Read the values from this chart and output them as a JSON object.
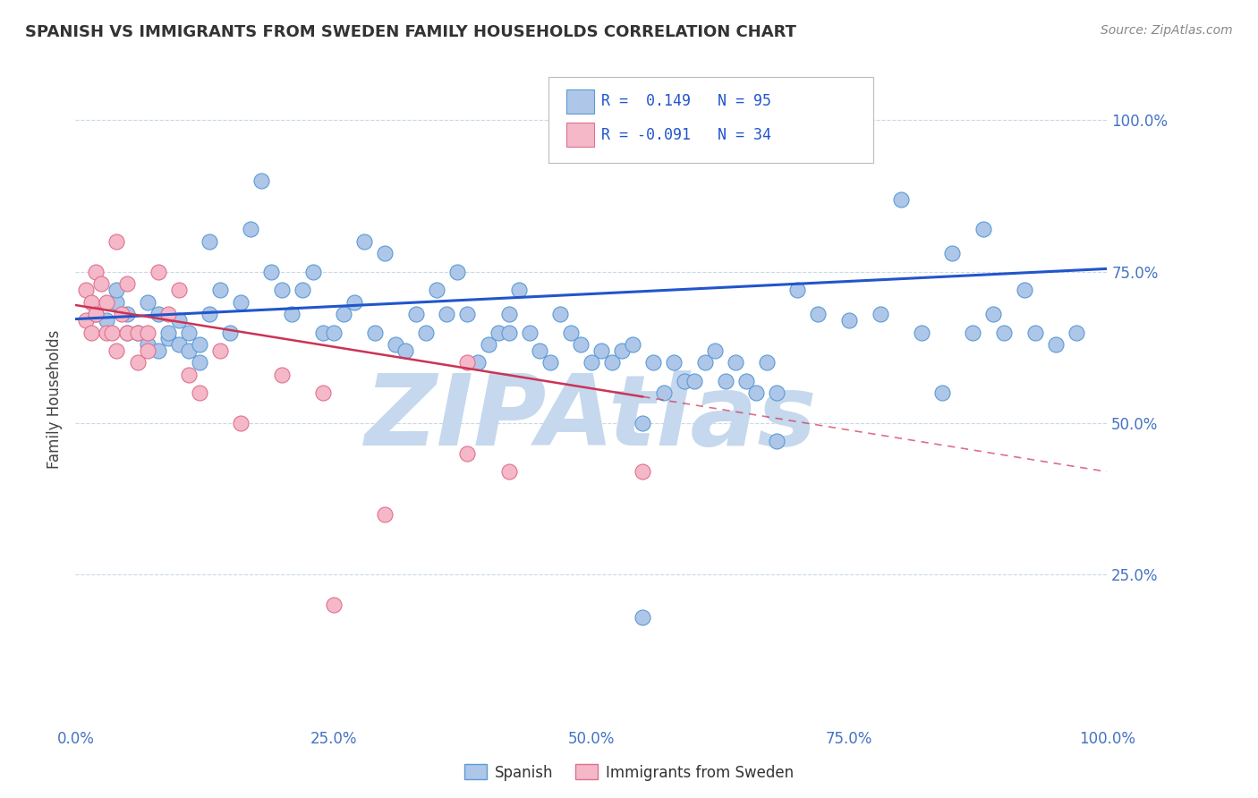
{
  "title": "SPANISH VS IMMIGRANTS FROM SWEDEN FAMILY HOUSEHOLDS CORRELATION CHART",
  "source": "Source: ZipAtlas.com",
  "ylabel": "Family Households",
  "xlim": [
    0.0,
    1.0
  ],
  "ylim": [
    0.0,
    1.08
  ],
  "ytick_labels": [
    "100.0%",
    "75.0%",
    "50.0%",
    "25.0%"
  ],
  "ytick_values": [
    1.0,
    0.75,
    0.5,
    0.25
  ],
  "xtick_labels": [
    "0.0%",
    "25.0%",
    "50.0%",
    "75.0%",
    "100.0%"
  ],
  "xtick_values": [
    0.0,
    0.25,
    0.5,
    0.75,
    1.0
  ],
  "blue_R": 0.149,
  "blue_N": 95,
  "pink_R": -0.091,
  "pink_N": 34,
  "blue_color": "#aec6e8",
  "blue_edge_color": "#5b9bd5",
  "pink_color": "#f4b8c8",
  "pink_edge_color": "#e07090",
  "trend_blue_color": "#2255cc",
  "trend_pink_color": "#cc3355",
  "watermark": "ZIPAtlas",
  "watermark_color": "#c5d8ed",
  "grid_color": "#c8d8e8",
  "blue_scatter_x": [
    0.02,
    0.03,
    0.04,
    0.04,
    0.05,
    0.05,
    0.06,
    0.07,
    0.07,
    0.08,
    0.08,
    0.09,
    0.09,
    0.1,
    0.1,
    0.11,
    0.11,
    0.12,
    0.12,
    0.13,
    0.14,
    0.15,
    0.16,
    0.17,
    0.18,
    0.19,
    0.2,
    0.21,
    0.22,
    0.23,
    0.24,
    0.25,
    0.26,
    0.27,
    0.28,
    0.29,
    0.3,
    0.31,
    0.32,
    0.33,
    0.34,
    0.35,
    0.36,
    0.37,
    0.38,
    0.39,
    0.4,
    0.41,
    0.42,
    0.43,
    0.44,
    0.45,
    0.46,
    0.47,
    0.48,
    0.49,
    0.5,
    0.51,
    0.52,
    0.53,
    0.54,
    0.55,
    0.56,
    0.57,
    0.58,
    0.59,
    0.6,
    0.61,
    0.62,
    0.63,
    0.64,
    0.65,
    0.66,
    0.67,
    0.68,
    0.7,
    0.72,
    0.75,
    0.78,
    0.8,
    0.82,
    0.84,
    0.85,
    0.87,
    0.88,
    0.89,
    0.9,
    0.92,
    0.93,
    0.95,
    0.97,
    0.13,
    0.42,
    0.55,
    0.68
  ],
  "blue_scatter_y": [
    0.68,
    0.67,
    0.7,
    0.72,
    0.65,
    0.68,
    0.65,
    0.63,
    0.7,
    0.62,
    0.68,
    0.64,
    0.65,
    0.67,
    0.63,
    0.62,
    0.65,
    0.6,
    0.63,
    0.68,
    0.72,
    0.65,
    0.7,
    0.82,
    0.9,
    0.75,
    0.72,
    0.68,
    0.72,
    0.75,
    0.65,
    0.65,
    0.68,
    0.7,
    0.8,
    0.65,
    0.78,
    0.63,
    0.62,
    0.68,
    0.65,
    0.72,
    0.68,
    0.75,
    0.68,
    0.6,
    0.63,
    0.65,
    0.65,
    0.72,
    0.65,
    0.62,
    0.6,
    0.68,
    0.65,
    0.63,
    0.6,
    0.62,
    0.6,
    0.62,
    0.63,
    0.5,
    0.6,
    0.55,
    0.6,
    0.57,
    0.57,
    0.6,
    0.62,
    0.57,
    0.6,
    0.57,
    0.55,
    0.6,
    0.55,
    0.72,
    0.68,
    0.67,
    0.68,
    0.87,
    0.65,
    0.55,
    0.78,
    0.65,
    0.82,
    0.68,
    0.65,
    0.72,
    0.65,
    0.63,
    0.65,
    0.8,
    0.68,
    0.18,
    0.47
  ],
  "pink_scatter_x": [
    0.01,
    0.01,
    0.015,
    0.015,
    0.02,
    0.02,
    0.025,
    0.03,
    0.03,
    0.035,
    0.04,
    0.04,
    0.045,
    0.05,
    0.05,
    0.06,
    0.06,
    0.07,
    0.07,
    0.08,
    0.09,
    0.1,
    0.11,
    0.12,
    0.14,
    0.16,
    0.2,
    0.24,
    0.3,
    0.38,
    0.42,
    0.55,
    0.38,
    0.25
  ],
  "pink_scatter_y": [
    0.72,
    0.67,
    0.7,
    0.65,
    0.68,
    0.75,
    0.73,
    0.7,
    0.65,
    0.65,
    0.8,
    0.62,
    0.68,
    0.73,
    0.65,
    0.65,
    0.6,
    0.62,
    0.65,
    0.75,
    0.68,
    0.72,
    0.58,
    0.55,
    0.62,
    0.5,
    0.58,
    0.55,
    0.35,
    0.45,
    0.42,
    0.42,
    0.6,
    0.2
  ],
  "blue_trend_x0": 0.0,
  "blue_trend_y0": 0.672,
  "blue_trend_x1": 1.0,
  "blue_trend_y1": 0.755,
  "pink_trend_x0": 0.0,
  "pink_trend_y0": 0.695,
  "pink_trend_x1": 1.0,
  "pink_trend_y1": 0.42
}
